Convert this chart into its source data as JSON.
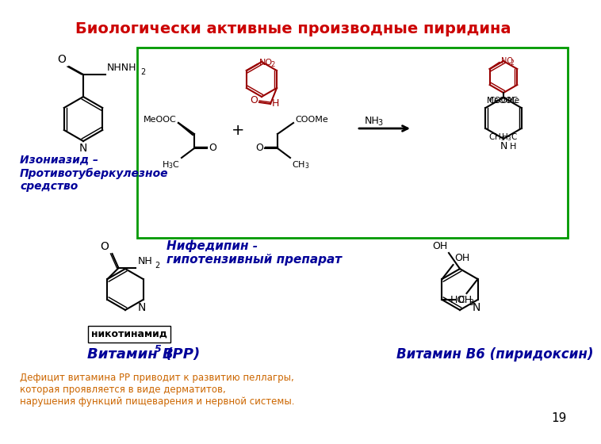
{
  "title": "Биологически активные производные пиридина",
  "title_color": "#CC0000",
  "title_fontsize": 14,
  "background_color": "#FFFFFF",
  "label_isoniazid": "Изониазид –\nПротивотуберкулезное\nсредство",
  "label_nifedipine": "Нифедипин -\nгипотензивный препарат",
  "label_nicotinamide": "никотинамид",
  "label_vitaminB5": "Витамин B",
  "label_vitaminB5_sub": "5",
  "label_vitaminB5_rest": " (РР)",
  "label_vitaminB6": "Витамин В6 (пиридоксин)",
  "label_deficit": "Дефицит витамина РР приводит к развитию пеллагры,\nкоторая проявляется в виде дерматитов,\nнарушения функций пищеварения и нервной системы.",
  "label_deficit_color": "#CC6600",
  "page_number": "19",
  "box_color": "#009900",
  "text_blue": "#000099",
  "text_black": "#000000",
  "text_red": "#990000"
}
